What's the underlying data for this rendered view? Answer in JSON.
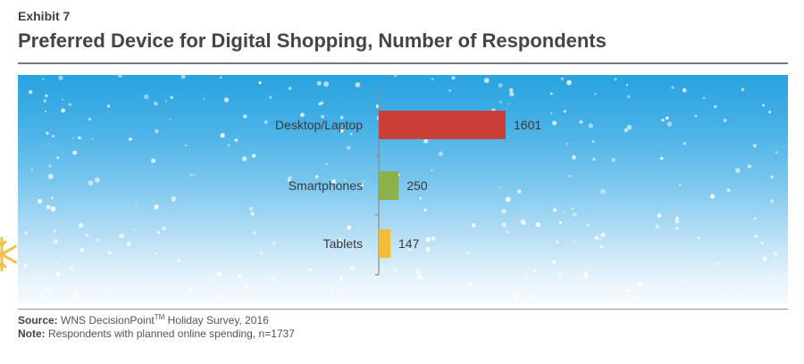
{
  "header": {
    "exhibit": "Exhibit 7",
    "title": "Preferred Device for Digital Shopping, Number of Respondents"
  },
  "chart_data": {
    "type": "bar",
    "orientation": "horizontal",
    "title": "Preferred Device for Digital Shopping, Number of Respondents",
    "categories": [
      "Desktop/Laptop",
      "Smartphones",
      "Tablets"
    ],
    "values": [
      1601,
      250,
      147
    ],
    "colors": [
      "#cc3f36",
      "#8db049",
      "#f5bb3b"
    ],
    "xlim": [
      0,
      1601
    ],
    "grid": false,
    "data_labels": true
  },
  "footer": {
    "source_label": "Source:",
    "source_text": "WNS DecisionPoint",
    "source_tm": "TM",
    "source_rest": " Holiday Survey, 2016",
    "note_label": "Note:",
    "note_text": "Respondents with planned online spending, n=1737"
  }
}
